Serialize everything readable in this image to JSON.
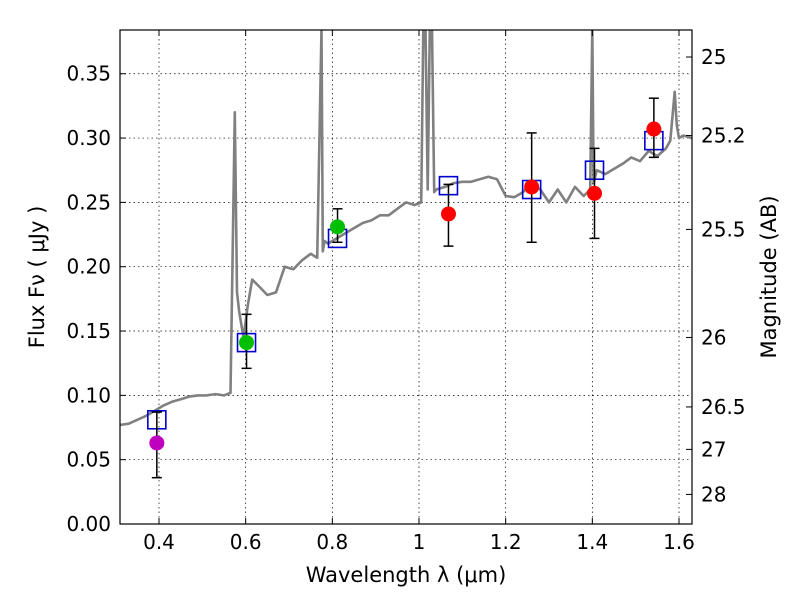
{
  "chart_data": {
    "type": "scatter",
    "xlabel": "Wavelength  λ (μm)",
    "ylabel": "Flux  Fν  ( μJy )",
    "y2label": "Magnitude (AB)",
    "xlim": [
      0.31,
      1.63
    ],
    "ylim": [
      0.0,
      0.384
    ],
    "xticks": [
      0.4,
      0.6,
      0.8,
      1.0,
      1.2,
      1.4,
      1.6
    ],
    "xtick_labels": [
      "0.4",
      "0.6",
      "0.8",
      "1",
      "1.2",
      "1.4",
      "1.6"
    ],
    "yticks": [
      0.0,
      0.05,
      0.1,
      0.15,
      0.2,
      0.25,
      0.3,
      0.35
    ],
    "ytick_labels": [
      "0.00",
      "0.05",
      "0.10",
      "0.15",
      "0.20",
      "0.25",
      "0.30",
      "0.35"
    ],
    "mag_ticks": [
      {
        "label": "25",
        "flux": 0.363
      },
      {
        "label": "25.2",
        "flux": 0.302
      },
      {
        "label": "25.5",
        "flux": 0.229
      },
      {
        "label": "26",
        "flux": 0.145
      },
      {
        "label": "26.5",
        "flux": 0.091
      },
      {
        "label": "27",
        "flux": 0.058
      },
      {
        "label": "28",
        "flux": 0.023
      }
    ],
    "grid": true,
    "model_color": "#808080",
    "model_spectrum": {
      "x": [
        0.31,
        0.33,
        0.35,
        0.37,
        0.39,
        0.41,
        0.43,
        0.45,
        0.47,
        0.49,
        0.51,
        0.53,
        0.55,
        0.565,
        0.575,
        0.58,
        0.585,
        0.595,
        0.605,
        0.615,
        0.63,
        0.65,
        0.67,
        0.69,
        0.71,
        0.73,
        0.75,
        0.765,
        0.775,
        0.778,
        0.782,
        0.79,
        0.81,
        0.83,
        0.85,
        0.87,
        0.89,
        0.91,
        0.93,
        0.95,
        0.97,
        0.99,
        1.005,
        1.01,
        1.015,
        1.02,
        1.025,
        1.03,
        1.035,
        1.04,
        1.06,
        1.08,
        1.1,
        1.12,
        1.14,
        1.16,
        1.18,
        1.2,
        1.22,
        1.24,
        1.26,
        1.28,
        1.3,
        1.32,
        1.34,
        1.36,
        1.38,
        1.395,
        1.4,
        1.403,
        1.41,
        1.43,
        1.45,
        1.47,
        1.49,
        1.51,
        1.53,
        1.55,
        1.57,
        1.58,
        1.59,
        1.595,
        1.6,
        1.61,
        1.63
      ],
      "y": [
        0.077,
        0.078,
        0.081,
        0.084,
        0.088,
        0.092,
        0.095,
        0.097,
        0.099,
        0.1,
        0.1,
        0.101,
        0.1,
        0.102,
        0.32,
        0.18,
        0.165,
        0.145,
        0.17,
        0.19,
        0.185,
        0.178,
        0.18,
        0.2,
        0.198,
        0.205,
        0.21,
        0.207,
        0.385,
        0.212,
        0.22,
        0.218,
        0.222,
        0.226,
        0.23,
        0.234,
        0.236,
        0.24,
        0.24,
        0.245,
        0.25,
        0.248,
        0.25,
        0.385,
        0.385,
        0.26,
        0.385,
        0.385,
        0.258,
        0.26,
        0.262,
        0.265,
        0.266,
        0.266,
        0.268,
        0.27,
        0.268,
        0.255,
        0.254,
        0.258,
        0.265,
        0.26,
        0.25,
        0.26,
        0.25,
        0.262,
        0.255,
        0.26,
        0.385,
        0.265,
        0.275,
        0.272,
        0.276,
        0.28,
        0.285,
        0.282,
        0.29,
        0.286,
        0.292,
        0.298,
        0.336,
        0.31,
        0.3,
        0.302,
        0.3
      ]
    },
    "model_photometry": [
      {
        "x": 0.395,
        "y": 0.081
      },
      {
        "x": 0.602,
        "y": 0.141
      },
      {
        "x": 0.812,
        "y": 0.222
      },
      {
        "x": 1.068,
        "y": 0.263
      },
      {
        "x": 1.26,
        "y": 0.26
      },
      {
        "x": 1.405,
        "y": 0.275
      },
      {
        "x": 1.542,
        "y": 0.298
      }
    ],
    "observed": [
      {
        "x": 0.395,
        "y": 0.063,
        "err_low": 0.036,
        "err_high": 0.087,
        "color": "#bf00bf"
      },
      {
        "x": 0.602,
        "y": 0.141,
        "err_low": 0.121,
        "err_high": 0.163,
        "color": "#00bf00"
      },
      {
        "x": 0.812,
        "y": 0.231,
        "err_low": 0.219,
        "err_high": 0.245,
        "color": "#00bf00"
      },
      {
        "x": 1.068,
        "y": 0.241,
        "err_low": 0.216,
        "err_high": 0.264,
        "color": "#ff0000"
      },
      {
        "x": 1.26,
        "y": 0.262,
        "err_low": 0.219,
        "err_high": 0.304,
        "color": "#ff0000"
      },
      {
        "x": 1.405,
        "y": 0.257,
        "err_low": 0.222,
        "err_high": 0.292,
        "color": "#ff0000"
      },
      {
        "x": 1.542,
        "y": 0.307,
        "err_low": 0.285,
        "err_high": 0.331,
        "color": "#ff0000"
      }
    ]
  }
}
